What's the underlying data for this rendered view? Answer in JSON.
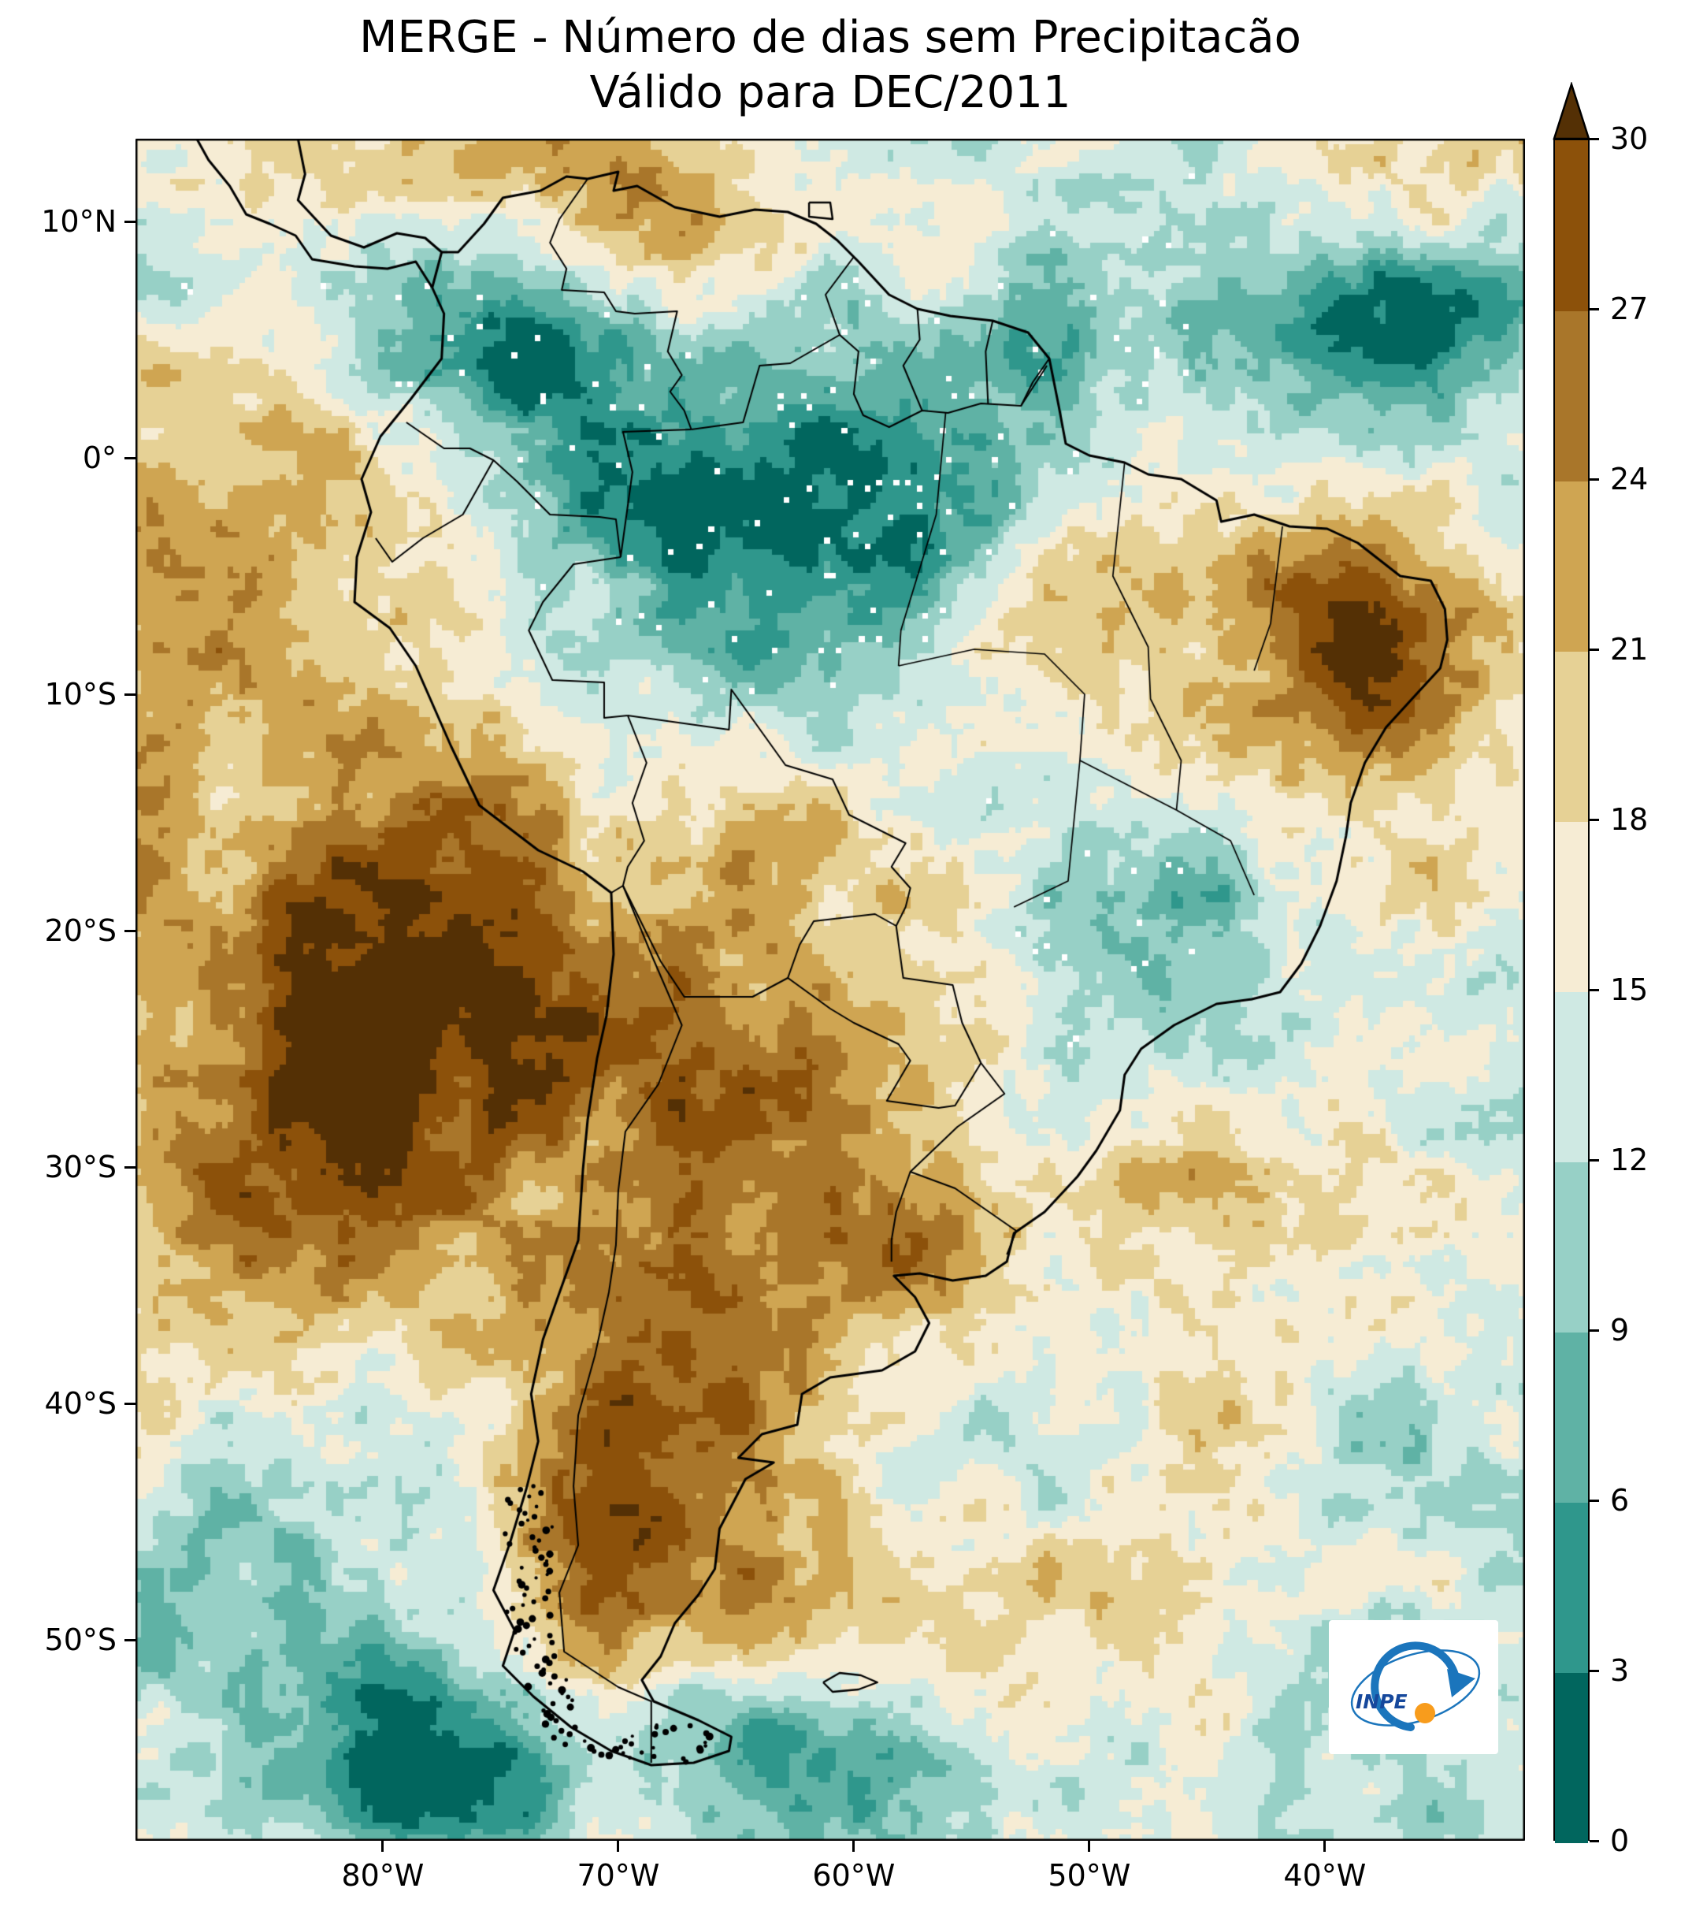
{
  "title": {
    "line1": "MERGE - Número de dias sem Precipitacão",
    "line2": "Válido para DEC/2011"
  },
  "axes": {
    "yticks": [
      {
        "label": "10°N",
        "lat": 10
      },
      {
        "label": "0°",
        "lat": 0
      },
      {
        "label": "10°S",
        "lat": -10
      },
      {
        "label": "20°S",
        "lat": -20
      },
      {
        "label": "30°S",
        "lat": -30
      },
      {
        "label": "40°S",
        "lat": -40
      },
      {
        "label": "50°S",
        "lat": -50
      }
    ],
    "xticks": [
      {
        "label": "80°W",
        "lon": -80
      },
      {
        "label": "70°W",
        "lon": -70
      },
      {
        "label": "60°W",
        "lon": -60
      },
      {
        "label": "50°W",
        "lon": -50
      },
      {
        "label": "40°W",
        "lon": -40
      }
    ]
  },
  "colorbar": {
    "levels": [
      0,
      3,
      6,
      9,
      12,
      15,
      18,
      21,
      24,
      27,
      30
    ],
    "colors": [
      "#01665e",
      "#2f978c",
      "#5fb2a5",
      "#97d0c6",
      "#cfe9e3",
      "#f6ecd4",
      "#e6d195",
      "#cfa552",
      "#a9762a",
      "#8c510a"
    ],
    "over_color": "#543005",
    "orientation": "vertical",
    "extend": "max"
  },
  "chart_data": {
    "type": "heatmap",
    "title": "MERGE - Número de dias sem Precipitacão",
    "subtitle": "Válido para DEC/2011",
    "variable": "Número de dias sem precipitação",
    "period": "DEC/2011",
    "region": "South America",
    "extent": {
      "lon_min": -90.5,
      "lon_max": -31.5,
      "lat_min": -58.5,
      "lat_max": 13.5
    },
    "levels": [
      0,
      3,
      6,
      9,
      12,
      15,
      18,
      21,
      24,
      27,
      30
    ],
    "colormap": "discrete teal-cream-brown (BrBG reversed), 3-day bins, extended above 30",
    "xticks": [
      "80°W",
      "70°W",
      "60°W",
      "50°W",
      "40°W"
    ],
    "yticks": [
      "10°N",
      "0°",
      "10°S",
      "20°S",
      "30°S",
      "40°S",
      "50°S"
    ],
    "legend_position": "right",
    "qualitative_pattern": {
      "low_values_teal": "Amazon basin, Colombia, ITCZ Atlantic band near 5°N, southeastern Brazil (Minas Gerais), Southern Ocean south of ~52°S",
      "high_values_brown": "SE Pacific off Chile, central Chile and Argentina, Patagonia, Northeast Brazil, Uruguay / Rio Grande do Sul"
    }
  },
  "logo": {
    "text": "INPE"
  }
}
